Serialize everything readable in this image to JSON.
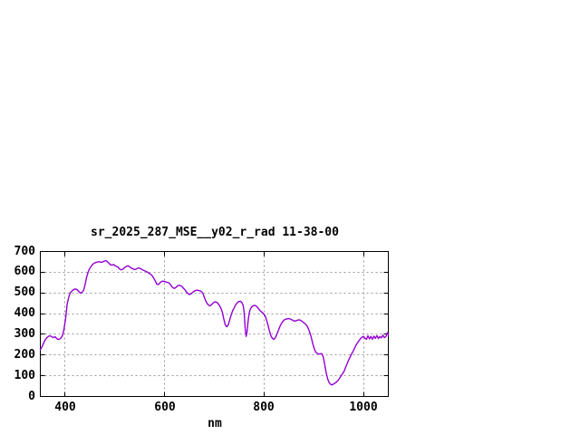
{
  "chart_data": {
    "type": "line",
    "title": "sr_2025_287_MSE__y02_r_rad 11-38-00",
    "xlabel": "nm",
    "xlim": [
      350,
      1050
    ],
    "ylim": [
      0,
      700
    ],
    "xticks": [
      400,
      600,
      800,
      1000
    ],
    "yticks": [
      0,
      100,
      200,
      300,
      400,
      500,
      600,
      700
    ],
    "grid": true,
    "legend": "none",
    "colors": {
      "line": "#9400D3",
      "grid": "#999999",
      "border": "#000000",
      "background": "#ffffff",
      "text": "#000000"
    },
    "points": [
      [
        350,
        226
      ],
      [
        354,
        243
      ],
      [
        358,
        266
      ],
      [
        362,
        281
      ],
      [
        366,
        290
      ],
      [
        370,
        293
      ],
      [
        373,
        288
      ],
      [
        376,
        285
      ],
      [
        380,
        288
      ],
      [
        384,
        277
      ],
      [
        388,
        276
      ],
      [
        392,
        283
      ],
      [
        395,
        298
      ],
      [
        398,
        330
      ],
      [
        401,
        380
      ],
      [
        404,
        446
      ],
      [
        407,
        478
      ],
      [
        410,
        500
      ],
      [
        413,
        508
      ],
      [
        416,
        514
      ],
      [
        419,
        519
      ],
      [
        422,
        518
      ],
      [
        425,
        514
      ],
      [
        428,
        505
      ],
      [
        431,
        499
      ],
      [
        434,
        503
      ],
      [
        437,
        512
      ],
      [
        440,
        540
      ],
      [
        443,
        575
      ],
      [
        446,
        600
      ],
      [
        449,
        617
      ],
      [
        452,
        628
      ],
      [
        455,
        637
      ],
      [
        458,
        643
      ],
      [
        461,
        646
      ],
      [
        464,
        649
      ],
      [
        467,
        650
      ],
      [
        470,
        650
      ],
      [
        473,
        648
      ],
      [
        476,
        650
      ],
      [
        479,
        654
      ],
      [
        482,
        656
      ],
      [
        485,
        650
      ],
      [
        488,
        643
      ],
      [
        491,
        636
      ],
      [
        494,
        634
      ],
      [
        497,
        637
      ],
      [
        500,
        632
      ],
      [
        503,
        628
      ],
      [
        506,
        625
      ],
      [
        509,
        616
      ],
      [
        512,
        612
      ],
      [
        515,
        613
      ],
      [
        518,
        619
      ],
      [
        521,
        625
      ],
      [
        524,
        629
      ],
      [
        527,
        631
      ],
      [
        530,
        625
      ],
      [
        533,
        620
      ],
      [
        536,
        617
      ],
      [
        539,
        613
      ],
      [
        542,
        614
      ],
      [
        545,
        618
      ],
      [
        548,
        621
      ],
      [
        551,
        618
      ],
      [
        554,
        614
      ],
      [
        557,
        610
      ],
      [
        560,
        607
      ],
      [
        563,
        603
      ],
      [
        566,
        600
      ],
      [
        569,
        594
      ],
      [
        572,
        590
      ],
      [
        575,
        583
      ],
      [
        578,
        571
      ],
      [
        581,
        559
      ],
      [
        584,
        543
      ],
      [
        587,
        540
      ],
      [
        590,
        547
      ],
      [
        593,
        554
      ],
      [
        596,
        557
      ],
      [
        599,
        555
      ],
      [
        602,
        553
      ],
      [
        605,
        551
      ],
      [
        608,
        549
      ],
      [
        611,
        543
      ],
      [
        614,
        532
      ],
      [
        617,
        524
      ],
      [
        620,
        522
      ],
      [
        623,
        527
      ],
      [
        626,
        534
      ],
      [
        629,
        537
      ],
      [
        632,
        535
      ],
      [
        635,
        531
      ],
      [
        638,
        522
      ],
      [
        641,
        515
      ],
      [
        644,
        504
      ],
      [
        647,
        497
      ],
      [
        650,
        492
      ],
      [
        653,
        495
      ],
      [
        656,
        502
      ],
      [
        659,
        508
      ],
      [
        662,
        511
      ],
      [
        665,
        513
      ],
      [
        668,
        512
      ],
      [
        671,
        510
      ],
      [
        674,
        506
      ],
      [
        677,
        498
      ],
      [
        680,
        478
      ],
      [
        683,
        460
      ],
      [
        686,
        447
      ],
      [
        689,
        440
      ],
      [
        692,
        438
      ],
      [
        695,
        445
      ],
      [
        698,
        452
      ],
      [
        701,
        457
      ],
      [
        704,
        456
      ],
      [
        707,
        450
      ],
      [
        710,
        440
      ],
      [
        713,
        428
      ],
      [
        716,
        408
      ],
      [
        719,
        375
      ],
      [
        722,
        345
      ],
      [
        725,
        337
      ],
      [
        728,
        345
      ],
      [
        731,
        370
      ],
      [
        734,
        395
      ],
      [
        737,
        415
      ],
      [
        740,
        428
      ],
      [
        743,
        443
      ],
      [
        746,
        452
      ],
      [
        749,
        458
      ],
      [
        752,
        460
      ],
      [
        755,
        455
      ],
      [
        758,
        440
      ],
      [
        760,
        408
      ],
      [
        762,
        330
      ],
      [
        764,
        290
      ],
      [
        766,
        315
      ],
      [
        768,
        365
      ],
      [
        770,
        400
      ],
      [
        772,
        420
      ],
      [
        775,
        432
      ],
      [
        778,
        438
      ],
      [
        781,
        440
      ],
      [
        784,
        437
      ],
      [
        787,
        430
      ],
      [
        790,
        420
      ],
      [
        793,
        412
      ],
      [
        796,
        406
      ],
      [
        799,
        400
      ],
      [
        802,
        390
      ],
      [
        805,
        370
      ],
      [
        808,
        345
      ],
      [
        811,
        315
      ],
      [
        814,
        292
      ],
      [
        817,
        280
      ],
      [
        820,
        276
      ],
      [
        823,
        285
      ],
      [
        826,
        302
      ],
      [
        829,
        320
      ],
      [
        832,
        338
      ],
      [
        835,
        353
      ],
      [
        838,
        363
      ],
      [
        841,
        370
      ],
      [
        844,
        373
      ],
      [
        847,
        375
      ],
      [
        850,
        376
      ],
      [
        853,
        374
      ],
      [
        856,
        370
      ],
      [
        859,
        366
      ],
      [
        862,
        364
      ],
      [
        865,
        366
      ],
      [
        868,
        369
      ],
      [
        871,
        370
      ],
      [
        874,
        367
      ],
      [
        877,
        362
      ],
      [
        880,
        356
      ],
      [
        883,
        350
      ],
      [
        886,
        343
      ],
      [
        889,
        328
      ],
      [
        892,
        310
      ],
      [
        895,
        285
      ],
      [
        898,
        255
      ],
      [
        901,
        230
      ],
      [
        904,
        214
      ],
      [
        907,
        208
      ],
      [
        910,
        205
      ],
      [
        913,
        206
      ],
      [
        916,
        207
      ],
      [
        919,
        193
      ],
      [
        922,
        155
      ],
      [
        925,
        115
      ],
      [
        928,
        85
      ],
      [
        931,
        67
      ],
      [
        934,
        58
      ],
      [
        937,
        56
      ],
      [
        940,
        61
      ],
      [
        943,
        65
      ],
      [
        946,
        70
      ],
      [
        949,
        78
      ],
      [
        952,
        88
      ],
      [
        955,
        100
      ],
      [
        958,
        110
      ],
      [
        961,
        122
      ],
      [
        964,
        140
      ],
      [
        967,
        158
      ],
      [
        970,
        175
      ],
      [
        973,
        190
      ],
      [
        976,
        205
      ],
      [
        979,
        218
      ],
      [
        982,
        233
      ],
      [
        985,
        247
      ],
      [
        988,
        259
      ],
      [
        991,
        269
      ],
      [
        994,
        279
      ],
      [
        997,
        286
      ],
      [
        1000,
        290
      ],
      [
        1003,
        281
      ],
      [
        1006,
        276
      ],
      [
        1009,
        293
      ],
      [
        1012,
        278
      ],
      [
        1015,
        290
      ],
      [
        1018,
        276
      ],
      [
        1021,
        291
      ],
      [
        1024,
        281
      ],
      [
        1027,
        294
      ],
      [
        1030,
        280
      ],
      [
        1033,
        289
      ],
      [
        1036,
        283
      ],
      [
        1039,
        296
      ],
      [
        1042,
        284
      ],
      [
        1045,
        289
      ],
      [
        1048,
        308
      ],
      [
        1050,
        297
      ]
    ]
  }
}
